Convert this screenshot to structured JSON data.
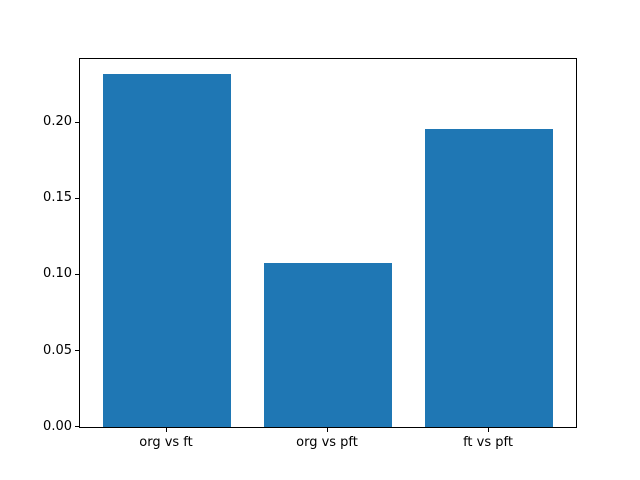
{
  "chart_data": {
    "type": "bar",
    "categories": [
      "org vs ft",
      "org vs pft",
      "ft vs pft"
    ],
    "values": [
      0.232,
      0.108,
      0.196
    ],
    "title": "",
    "xlabel": "",
    "ylabel": "",
    "ylim": [
      0,
      0.242
    ],
    "xlim": [
      -0.54,
      2.54
    ],
    "yticks": [
      "0.00",
      "0.05",
      "0.10",
      "0.15",
      "0.20"
    ],
    "bar_width": 0.8,
    "bar_color": "#1f77b4",
    "spine_color": "#000000",
    "background_color": "#ffffff",
    "grid": false,
    "legend": null
  }
}
